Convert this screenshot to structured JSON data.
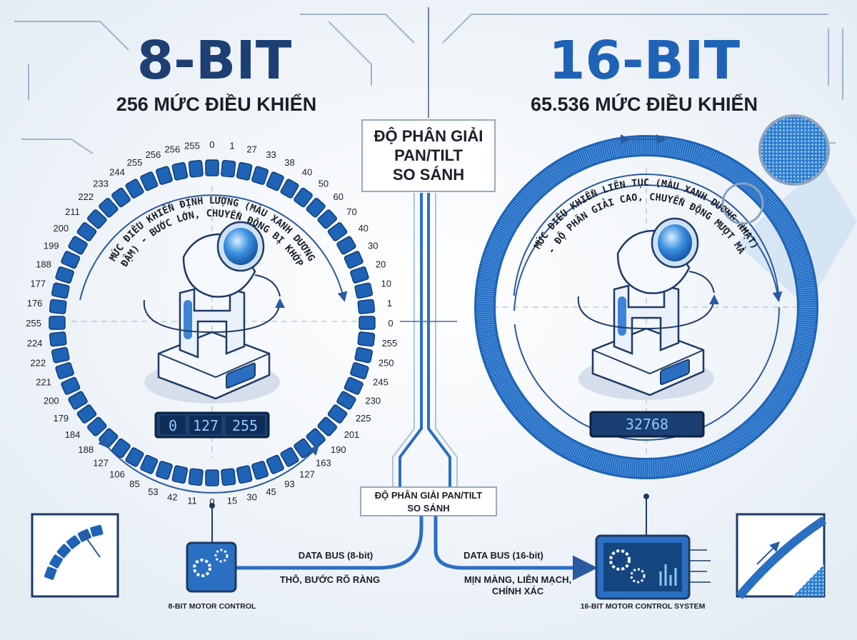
{
  "left": {
    "title": "8-BIT",
    "subtitle": "256 MỨC ĐIỀU KHIỂN",
    "arc_text": [
      "MỨC ĐIỀU KHIỂN ĐỊNH LƯỢNG (MÀU XANH DƯƠNG",
      "ĐẬM) - BƯỚC LỚN, CHUYỂN ĐỘNG BỊ KHỚP"
    ],
    "ring_labels": [
      "0",
      "1",
      "27",
      "33",
      "38",
      "40",
      "50",
      "60",
      "70",
      "40",
      "30",
      "20",
      "10",
      "1",
      "0",
      "255",
      "250",
      "245",
      "230",
      "225",
      "201",
      "190",
      "163",
      "127",
      "93",
      "45",
      "30",
      "15",
      "0",
      "11",
      "42",
      "53",
      "85",
      "106",
      "127",
      "188",
      "184",
      "179",
      "200",
      "221",
      "222",
      "224",
      "255",
      "176",
      "177",
      "188",
      "199",
      "200",
      "211",
      "222",
      "233",
      "244",
      "255",
      "256",
      "256",
      "255"
    ],
    "display": [
      "0",
      "127",
      "255"
    ],
    "bus_label": "DATA BUS (8-bit)",
    "bus_note": "THÔ, BƯỚC RÕ RÀNG",
    "controller": "8-BIT MOTOR CONTROL"
  },
  "right": {
    "title": "16-BIT",
    "subtitle": "65.536 MỨC ĐIỀU KHIỂN",
    "arc_text": [
      "MỨC ĐIỀU KHIỂN LIÊN TỤC (MÀU XANH DƯƠNG NHẠT)",
      "- ĐỘ PHÂN GIẢI CAO, CHUYỂN ĐỘNG MƯỢT MÀ"
    ],
    "display": "32768",
    "bus_label": "DATA BUS (16-bit)",
    "bus_note": [
      "MỊN MÀNG, LIÊN MẠCH,",
      "CHÍNH XÁC"
    ],
    "controller": "16-BIT MOTOR CONTROL SYSTEM"
  },
  "center": {
    "title": [
      "ĐỘ PHÂN GIẢI",
      "PAN/TILT",
      "SO SÁNH"
    ],
    "bottom_box": [
      "ĐỘ PHÂN GIẢI PAN/TILT",
      "SO SÁNH"
    ]
  }
}
